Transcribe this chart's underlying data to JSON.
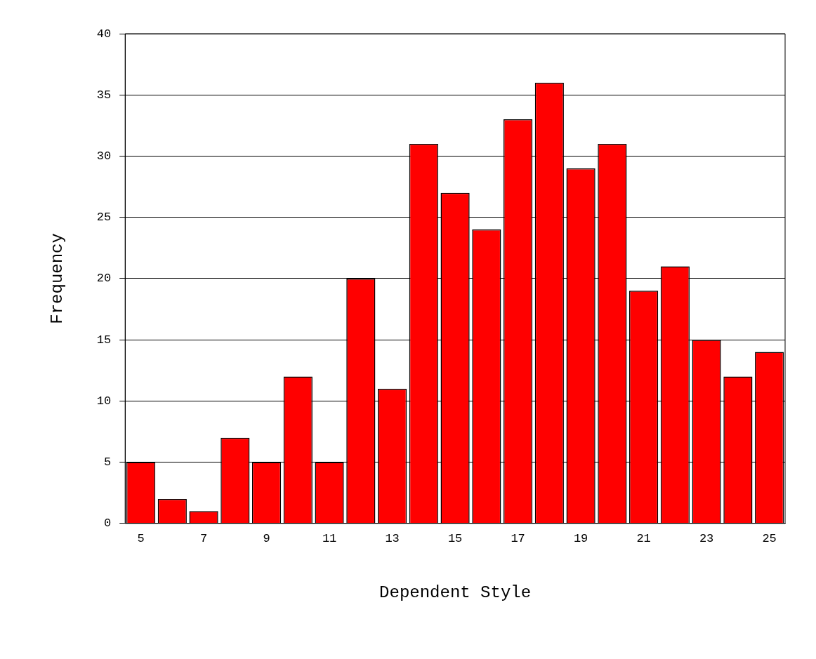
{
  "chart_data": {
    "type": "bar",
    "xlabel": "Dependent Style",
    "ylabel": "Frequency",
    "categories": [
      "5",
      null,
      "7",
      null,
      "9",
      null,
      "11",
      null,
      "13",
      null,
      "15",
      null,
      "17",
      null,
      "19",
      null,
      "21",
      null,
      "23",
      null,
      "25"
    ],
    "values": [
      5,
      2,
      1,
      7,
      5,
      12,
      5,
      20,
      11,
      31,
      27,
      24,
      33,
      36,
      29,
      31,
      19,
      21,
      15,
      12,
      14
    ],
    "color": "#ff0000",
    "ylim": [
      0,
      40
    ],
    "yticks": [
      0,
      5,
      10,
      15,
      20,
      25,
      30,
      35,
      40
    ],
    "grid": "y",
    "legend": false
  }
}
